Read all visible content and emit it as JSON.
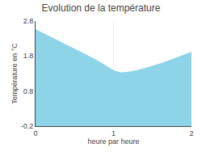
{
  "chart_data": {
    "type": "area",
    "title": "Evolution de la température",
    "xlabel": "heure par heure",
    "ylabel": "Température en °C",
    "x": [
      0,
      0.1,
      0.2,
      0.3,
      0.4,
      0.5,
      0.6,
      0.7,
      0.8,
      0.9,
      1.0,
      1.05,
      1.1,
      1.2,
      1.3,
      1.4,
      1.5,
      1.6,
      1.7,
      1.8,
      1.9,
      2.0
    ],
    "values": [
      2.55,
      2.44,
      2.33,
      2.22,
      2.1,
      1.99,
      1.88,
      1.77,
      1.65,
      1.52,
      1.38,
      1.34,
      1.31,
      1.34,
      1.38,
      1.44,
      1.5,
      1.57,
      1.65,
      1.73,
      1.82,
      1.9
    ],
    "color": "#8dd4e8",
    "xlim": [
      0,
      2
    ],
    "ylim": [
      -0.2,
      2.8
    ],
    "xticks": [
      0,
      1,
      2
    ],
    "yticks": [
      -0.2,
      0.8,
      1.8,
      2.8
    ],
    "grid": "x"
  }
}
